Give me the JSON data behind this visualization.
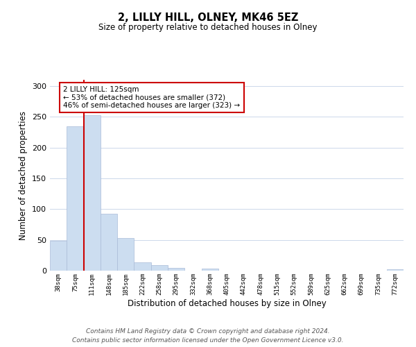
{
  "title": "2, LILLY HILL, OLNEY, MK46 5EZ",
  "subtitle": "Size of property relative to detached houses in Olney",
  "xlabel": "Distribution of detached houses by size in Olney",
  "ylabel": "Number of detached properties",
  "bar_labels": [
    "38sqm",
    "75sqm",
    "111sqm",
    "148sqm",
    "185sqm",
    "222sqm",
    "258sqm",
    "295sqm",
    "332sqm",
    "368sqm",
    "405sqm",
    "442sqm",
    "478sqm",
    "515sqm",
    "552sqm",
    "589sqm",
    "625sqm",
    "662sqm",
    "699sqm",
    "735sqm",
    "772sqm"
  ],
  "bar_values": [
    48,
    235,
    252,
    93,
    53,
    14,
    9,
    4,
    0,
    3,
    0,
    0,
    0,
    0,
    0,
    0,
    0,
    0,
    0,
    0,
    2
  ],
  "bar_color": "#ccddf0",
  "bar_edge_color": "#aabbd8",
  "vline_x_index": 1.5,
  "vline_color": "#cc0000",
  "ylim": [
    0,
    310
  ],
  "yticks": [
    0,
    50,
    100,
    150,
    200,
    250,
    300
  ],
  "annotation_title": "2 LILLY HILL: 125sqm",
  "annotation_line1": "← 53% of detached houses are smaller (372)",
  "annotation_line2": "46% of semi-detached houses are larger (323) →",
  "annotation_box_color": "#ffffff",
  "annotation_box_edge": "#cc0000",
  "footer_line1": "Contains HM Land Registry data © Crown copyright and database right 2024.",
  "footer_line2": "Contains public sector information licensed under the Open Government Licence v3.0.",
  "background_color": "#ffffff",
  "grid_color": "#ccd8ea"
}
